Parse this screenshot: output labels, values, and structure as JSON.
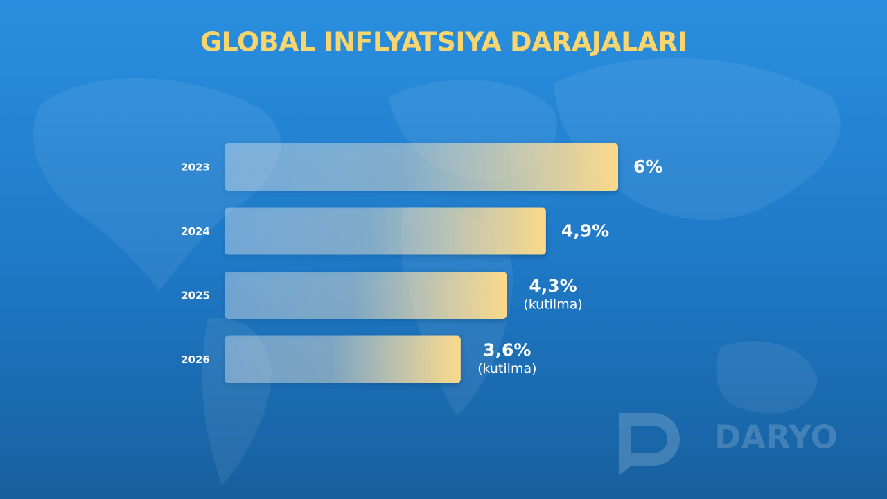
{
  "chart_data": {
    "type": "bar",
    "orientation": "horizontal",
    "title": "GLOBAL INFLYATSIYA DARAJALARI",
    "categories": [
      "2023",
      "2024",
      "2025",
      "2026"
    ],
    "values": [
      6,
      4.9,
      4.3,
      3.6
    ],
    "value_labels": [
      "6%",
      "4,9%",
      "4,3%",
      "3,6%"
    ],
    "notes": [
      null,
      null,
      "(kutilma)",
      "(kutilma)"
    ],
    "xlim": [
      0,
      6
    ],
    "color": "#fbd98a",
    "watermark": "DARYO"
  }
}
